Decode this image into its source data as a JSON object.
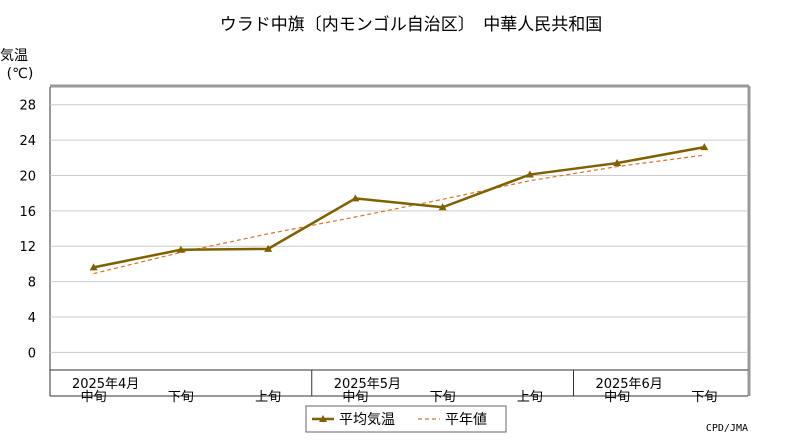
{
  "chart_data": {
    "type": "line",
    "title": "ウラド中旗〔内モンゴル自治区〕　中華人民共和国",
    "ylabel_line1": "気温",
    "ylabel_line2": "(℃)",
    "ylim": [
      -2,
      30
    ],
    "yticks": [
      0,
      4,
      8,
      12,
      16,
      20,
      24,
      28
    ],
    "grid": true,
    "categories": [
      "中旬",
      "下旬",
      "上旬",
      "中旬",
      "下旬",
      "上旬",
      "中旬",
      "下旬"
    ],
    "month_labels": [
      {
        "label": "2025年4月",
        "index": 0
      },
      {
        "label": "2025年5月",
        "index": 3
      },
      {
        "label": "2025年6月",
        "index": 6
      }
    ],
    "series": [
      {
        "name": "平均気温",
        "style": "solid-triangle",
        "color": "#806000",
        "values": [
          9.6,
          11.6,
          11.7,
          17.4,
          16.4,
          20.1,
          21.4,
          23.2
        ]
      },
      {
        "name": "平年値",
        "style": "dashed",
        "color": "#e07020",
        "values": [
          8.9,
          11.3,
          13.4,
          15.3,
          17.3,
          19.4,
          21.0,
          22.3
        ]
      }
    ],
    "legend_position": "bottom-center",
    "credit": "CPD/JMA"
  }
}
